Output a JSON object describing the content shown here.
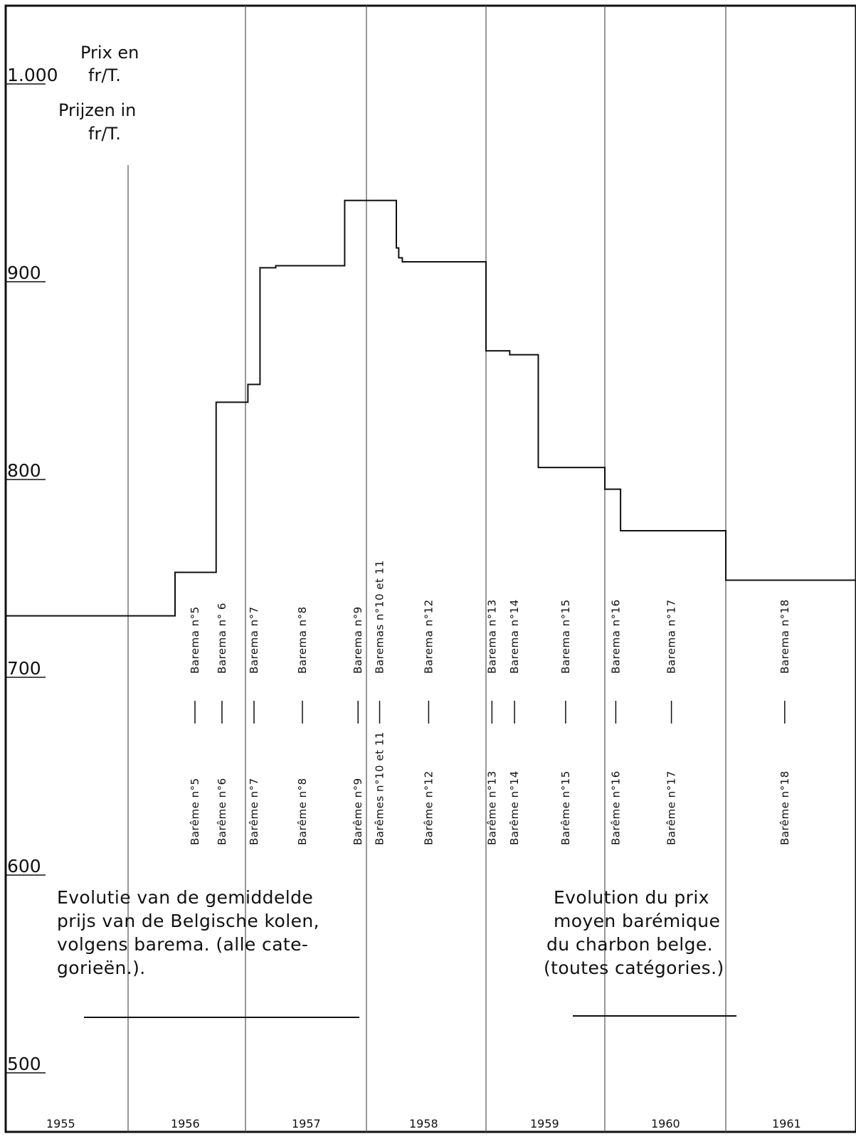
{
  "chart_data": {
    "type": "line",
    "step": true,
    "ylabel_lines": [
      "Prix en",
      "fr/T.",
      "Prijzen in",
      "fr/T."
    ],
    "yticks": [
      {
        "value": 1000,
        "label": "1.000"
      },
      {
        "value": 900,
        "label": "900"
      },
      {
        "value": 800,
        "label": "800"
      },
      {
        "value": 700,
        "label": "700"
      },
      {
        "value": 600,
        "label": "600"
      },
      {
        "value": 500,
        "label": "500"
      }
    ],
    "ylim": [
      480,
      1020
    ],
    "xlim": [
      1955,
      1962
    ],
    "years": [
      "1955",
      "1956",
      "1957",
      "1958",
      "1959",
      "1960",
      "1961"
    ],
    "grid": "vertical year lines",
    "series": [
      {
        "x": [
          1955,
          1956.4,
          1956.75,
          1957.02,
          1957.12,
          1957.25,
          1957.82,
          1958.25,
          1958.27,
          1958.3,
          1958.35,
          1959.0,
          1959.2,
          1959.44,
          1960.0,
          1960.13,
          1960.45,
          1961.0
        ],
        "y": [
          730,
          752,
          838,
          847,
          906,
          907,
          940,
          916,
          911,
          909,
          909,
          864,
          862,
          805,
          794,
          773,
          773,
          748
        ]
      }
    ],
    "annotations": {
      "barema_nl": [
        "Barema n°5",
        "Barema n° 6",
        "Barema n°7",
        "Barema n°8",
        "Barema n°9",
        "Baremas n°10 et 11",
        "Barema n°12",
        "Barema n°13",
        "Barema n°14",
        "Barema n°15",
        "Barema n°16",
        "Barema n°17",
        "Barema n°18"
      ],
      "bareme_fr": [
        "Barême n°5",
        "Barême n°6",
        "Barême n°7",
        "Barême n°8",
        "Barême n°9",
        "Barêmes n°10 et 11",
        "Barême n°12",
        "Barême n°13",
        "Barême n°14",
        "Barême n°15",
        "Barême n°16",
        "Barême n°17",
        "Barême n°18"
      ],
      "barema_x": [
        1956.6,
        1956.83,
        1957.1,
        1957.5,
        1957.96,
        1958.14,
        1958.55,
        1959.08,
        1959.27,
        1959.7,
        1960.12,
        1960.58,
        1961.48
      ]
    },
    "caption_nl": [
      "Evolutie van de gemiddelde",
      "prijs van de Belgische kolen,",
      "volgens barema. (alle cate-",
      "gorieën.)."
    ],
    "caption_fr": [
      "Evolution du prix",
      "moyen barémique",
      "du charbon belge.",
      "(toutes catégories.)"
    ]
  }
}
